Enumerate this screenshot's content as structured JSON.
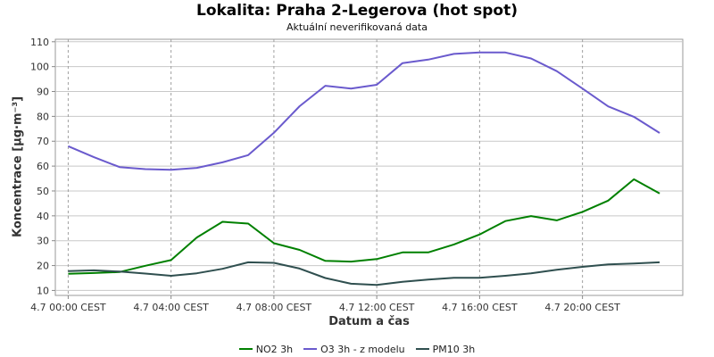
{
  "chart_data": {
    "type": "line",
    "title": "Lokalita: Praha 2-Legerova (hot spot)",
    "subtitle": "Aktuální neverifikovaná data",
    "xlabel": "Datum a čas",
    "ylabel": "Koncentrace [µg·m⁻³]",
    "ylim": [
      8,
      111
    ],
    "yticks": [
      10,
      20,
      30,
      40,
      50,
      60,
      70,
      80,
      90,
      100,
      110
    ],
    "xlim": [
      -0.5,
      23.9
    ],
    "xticks": [
      {
        "x": 0,
        "label": "4.7 00:00 CEST"
      },
      {
        "x": 4,
        "label": "4.7 04:00 CEST"
      },
      {
        "x": 8,
        "label": "4.7 08:00 CEST"
      },
      {
        "x": 12,
        "label": "4.7 12:00 CEST"
      },
      {
        "x": 16,
        "label": "4.7 16:00 CEST"
      },
      {
        "x": 20,
        "label": "4.7 20:00 CEST"
      }
    ],
    "grid": true,
    "legend_position": "bottom",
    "x": [
      0,
      1,
      2,
      3,
      4,
      5,
      6,
      7,
      8,
      9,
      10,
      11,
      12,
      13,
      14,
      15,
      16,
      17,
      18,
      19,
      20,
      21,
      22,
      23
    ],
    "series": [
      {
        "name": "NO2 3h",
        "color": "#008000",
        "values": [
          16.7,
          17.0,
          17.4,
          19.9,
          22.2,
          31.3,
          37.6,
          36.9,
          29.0,
          26.3,
          21.9,
          21.6,
          22.6,
          25.3,
          25.3,
          28.5,
          32.5,
          37.9,
          39.9,
          38.2,
          41.6,
          46.1,
          54.7,
          49.0
        ]
      },
      {
        "name": "O3 3h - z modelu",
        "color": "#6a5acd",
        "values": [
          68.0,
          63.6,
          59.6,
          58.8,
          58.5,
          59.3,
          61.5,
          64.4,
          73.4,
          84.1,
          92.3,
          91.2,
          92.7,
          101.4,
          102.8,
          105.1,
          105.7,
          105.7,
          103.3,
          98.2,
          91.2,
          84.0,
          79.8,
          73.3
        ]
      },
      {
        "name": "PM10 3h",
        "color": "#2f4f4f",
        "values": [
          17.8,
          18.1,
          17.6,
          16.8,
          15.9,
          16.9,
          18.7,
          21.3,
          21.1,
          18.8,
          15.0,
          12.7,
          12.2,
          13.5,
          14.4,
          15.1,
          15.1,
          15.9,
          16.9,
          18.3,
          19.5,
          20.5,
          20.8,
          21.3
        ]
      }
    ]
  }
}
